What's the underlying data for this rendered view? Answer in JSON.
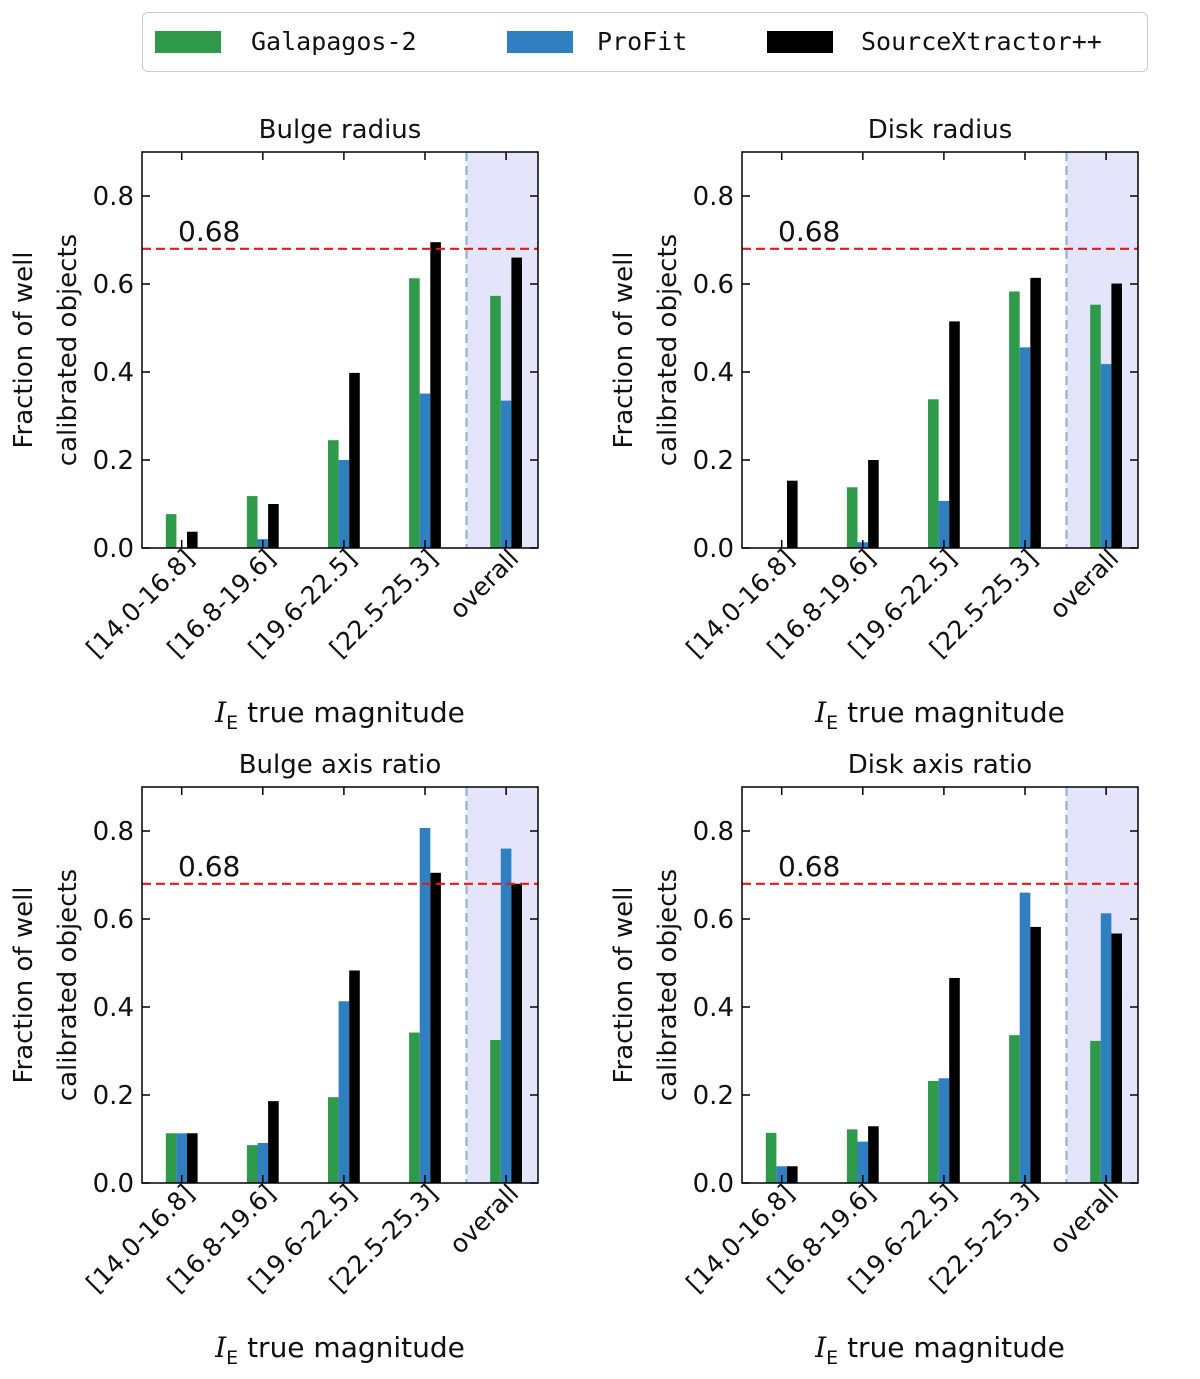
{
  "legend": {
    "items": [
      {
        "label": "Galapagos-2",
        "color": "#2e9a4a"
      },
      {
        "label": "ProFit",
        "color": "#2f7fc1"
      },
      {
        "label": "SourceXtractor++",
        "color": "#000000"
      }
    ]
  },
  "chart_data": [
    {
      "type": "bar",
      "title": "Bulge radius",
      "xlabel_symbol": "I",
      "xlabel_subscript": "E",
      "xlabel_text": "true magnitude",
      "ylabel": [
        "Fraction of well",
        "calibrated objects"
      ],
      "categories": [
        "[14.0-16.8]",
        "[16.8-19.6]",
        "[19.6-22.5]",
        "[22.5-25.3]",
        "overall"
      ],
      "ylim": [
        0,
        0.9
      ],
      "yticks": [
        "0.0",
        "0.2",
        "0.4",
        "0.6",
        "0.8"
      ],
      "threshold": {
        "value": 0.68,
        "label": "0.68",
        "color": "#e41a1c"
      },
      "overall_shade": "#e4e4fb",
      "series": [
        {
          "name": "Galapagos-2",
          "values": [
            0.077,
            0.118,
            0.245,
            0.613,
            0.573
          ]
        },
        {
          "name": "ProFit",
          "values": [
            0.0,
            0.02,
            0.2,
            0.351,
            0.335
          ]
        },
        {
          "name": "SourceXtractor++",
          "values": [
            0.037,
            0.1,
            0.398,
            0.695,
            0.66
          ]
        }
      ]
    },
    {
      "type": "bar",
      "title": "Disk radius",
      "xlabel_symbol": "I",
      "xlabel_subscript": "E",
      "xlabel_text": "true magnitude",
      "ylabel": [
        "Fraction of well",
        "calibrated objects"
      ],
      "categories": [
        "[14.0-16.8]",
        "[16.8-19.6]",
        "[19.6-22.5]",
        "[22.5-25.3]",
        "overall"
      ],
      "ylim": [
        0,
        0.9
      ],
      "yticks": [
        "0.0",
        "0.2",
        "0.4",
        "0.6",
        "0.8"
      ],
      "threshold": {
        "value": 0.68,
        "label": "0.68",
        "color": "#e41a1c"
      },
      "overall_shade": "#e4e4fb",
      "series": [
        {
          "name": "Galapagos-2",
          "values": [
            0.0,
            0.138,
            0.338,
            0.583,
            0.553
          ]
        },
        {
          "name": "ProFit",
          "values": [
            0.0,
            0.013,
            0.107,
            0.456,
            0.418
          ]
        },
        {
          "name": "SourceXtractor++",
          "values": [
            0.153,
            0.2,
            0.515,
            0.614,
            0.601
          ]
        }
      ]
    },
    {
      "type": "bar",
      "title": "Bulge axis ratio",
      "xlabel_symbol": "I",
      "xlabel_subscript": "E",
      "xlabel_text": "true magnitude",
      "ylabel": [
        "Fraction of well",
        "calibrated objects"
      ],
      "categories": [
        "[14.0-16.8]",
        "[16.8-19.6]",
        "[19.6-22.5]",
        "[22.5-25.3]",
        "overall"
      ],
      "ylim": [
        0,
        0.9
      ],
      "yticks": [
        "0.0",
        "0.2",
        "0.4",
        "0.6",
        "0.8"
      ],
      "threshold": {
        "value": 0.68,
        "label": "0.68",
        "color": "#e41a1c"
      },
      "overall_shade": "#e4e4fb",
      "series": [
        {
          "name": "Galapagos-2",
          "values": [
            0.113,
            0.086,
            0.195,
            0.342,
            0.325
          ]
        },
        {
          "name": "ProFit",
          "values": [
            0.113,
            0.091,
            0.413,
            0.807,
            0.76
          ]
        },
        {
          "name": "SourceXtractor++",
          "values": [
            0.113,
            0.186,
            0.483,
            0.705,
            0.68
          ]
        }
      ]
    },
    {
      "type": "bar",
      "title": "Disk axis ratio",
      "xlabel_symbol": "I",
      "xlabel_subscript": "E",
      "xlabel_text": "true magnitude",
      "ylabel": [
        "Fraction of well",
        "calibrated objects"
      ],
      "categories": [
        "[14.0-16.8]",
        "[16.8-19.6]",
        "[19.6-22.5]",
        "[22.5-25.3]",
        "overall"
      ],
      "ylim": [
        0,
        0.9
      ],
      "yticks": [
        "0.0",
        "0.2",
        "0.4",
        "0.6",
        "0.8"
      ],
      "threshold": {
        "value": 0.68,
        "label": "0.68",
        "color": "#e41a1c"
      },
      "overall_shade": "#e4e4fb",
      "series": [
        {
          "name": "Galapagos-2",
          "values": [
            0.114,
            0.122,
            0.232,
            0.336,
            0.323
          ]
        },
        {
          "name": "ProFit",
          "values": [
            0.038,
            0.094,
            0.238,
            0.66,
            0.613
          ]
        },
        {
          "name": "SourceXtractor++",
          "values": [
            0.038,
            0.129,
            0.466,
            0.582,
            0.567
          ]
        }
      ]
    }
  ]
}
